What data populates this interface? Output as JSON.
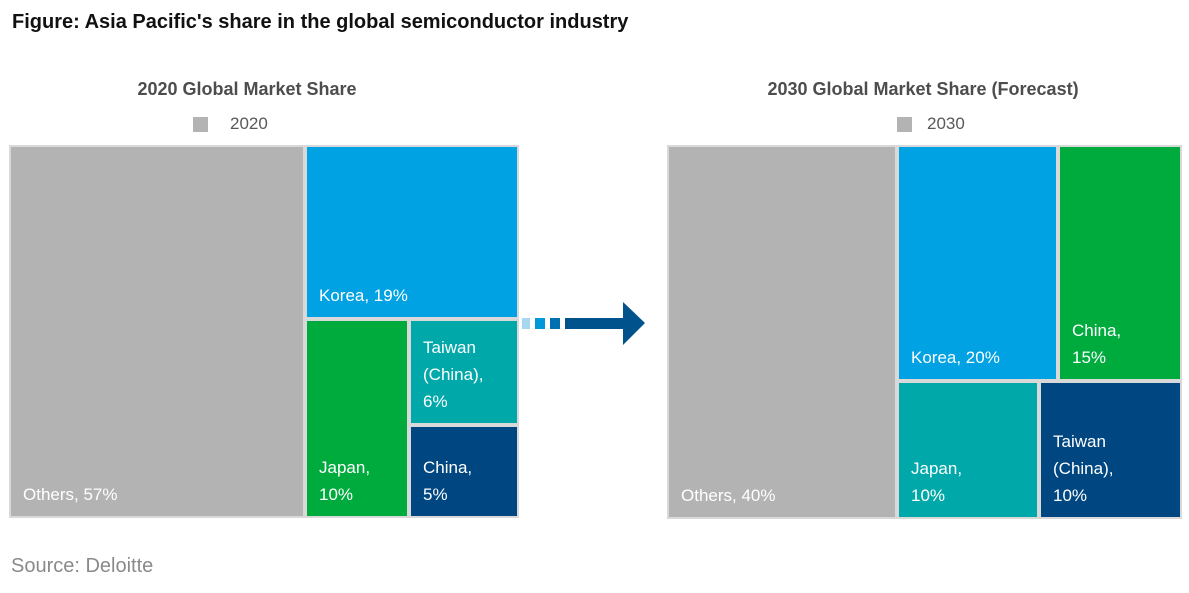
{
  "figure_title": "Figure: Asia Pacific's share in the global semiconductor industry",
  "source": "Source: Deloitte",
  "colors": {
    "others": "#b3b3b3",
    "korea": "#00a2e3",
    "japan_2020": "#00ab3e",
    "taiwan_2020": "#00a8a9",
    "china_2020": "#004680",
    "china_2030": "#00ab3e",
    "japan_2030": "#00a8a9",
    "taiwan_2030": "#004680",
    "arrow": "#00528c",
    "arrow_dash_light": "#a8d8ef",
    "arrow_dash_mid": "#0098d8",
    "arrow_dash_dark": "#0070b0",
    "border": "#d9d9d9"
  },
  "chart_data": [
    {
      "type": "treemap",
      "title": "2020 Global Market Share",
      "legend": "2020",
      "cells": [
        {
          "name": "Others",
          "value": 57,
          "label_lines": [
            "Others, 57%"
          ]
        },
        {
          "name": "Korea",
          "value": 19,
          "label_lines": [
            "Korea, 19%"
          ]
        },
        {
          "name": "Japan",
          "value": 10,
          "label_lines": [
            "Japan,",
            "10%"
          ]
        },
        {
          "name": "Taiwan (China)",
          "value": 6,
          "label_lines": [
            "Taiwan",
            "(China),",
            "6%"
          ]
        },
        {
          "name": "China",
          "value": 5,
          "label_lines": [
            "China,",
            "5%"
          ]
        }
      ]
    },
    {
      "type": "treemap",
      "title": "2030 Global Market Share (Forecast)",
      "legend": "2030",
      "cells": [
        {
          "name": "Others",
          "value": 40,
          "label_lines": [
            "Others, 40%"
          ]
        },
        {
          "name": "Korea",
          "value": 20,
          "label_lines": [
            "Korea, 20%"
          ]
        },
        {
          "name": "China",
          "value": 15,
          "label_lines": [
            "China,",
            "15%"
          ]
        },
        {
          "name": "Japan",
          "value": 10,
          "label_lines": [
            "Japan,",
            "10%"
          ]
        },
        {
          "name": "Taiwan (China)",
          "value": 10,
          "label_lines": [
            "Taiwan",
            "(China),",
            "10%"
          ]
        }
      ]
    }
  ]
}
